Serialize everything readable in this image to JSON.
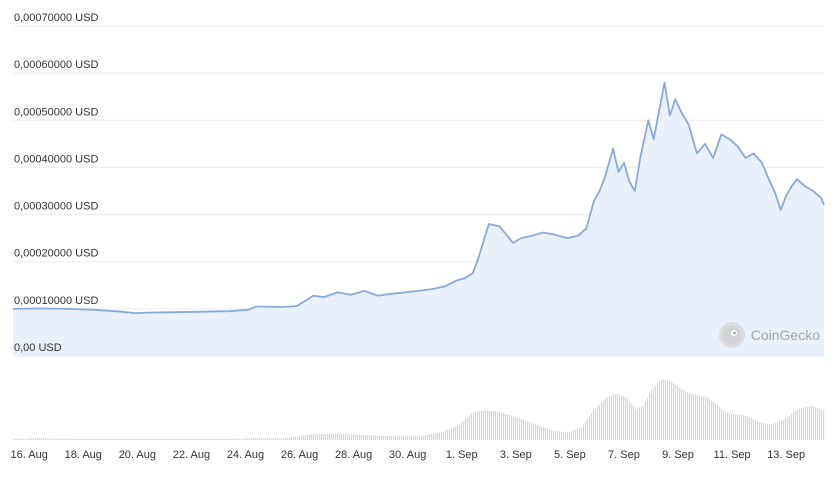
{
  "watermark": {
    "text": "CoinGecko",
    "icon": "gecko-logo-icon"
  },
  "colors": {
    "line": "#8aa9dc",
    "area": "#e9f0fb",
    "volume": "#d6d6d6",
    "grid": "#ececec",
    "text": "#333333"
  },
  "chart_data": [
    {
      "type": "line",
      "title": "",
      "xlabel": "",
      "ylabel": "",
      "ylim": [
        0,
        0.0007
      ],
      "grid": true,
      "fill": "area",
      "y_tick_labels": [
        "0,00 USD",
        "0,00010000 USD",
        "0,00020000 USD",
        "0,00030000 USD",
        "0,00040000 USD",
        "0,00050000 USD",
        "0,00060000 USD",
        "0,00070000 USD"
      ],
      "y_ticks": [
        0,
        0.0001,
        0.0002,
        0.0003,
        0.0004,
        0.0005,
        0.0006,
        0.0007
      ],
      "x_tick_labels": [
        "16. Aug",
        "18. Aug",
        "20. Aug",
        "22. Aug",
        "24. Aug",
        "26. Aug",
        "28. Aug",
        "30. Aug",
        "1. Sep",
        "3. Sep",
        "5. Sep",
        "7. Sep",
        "9. Sep",
        "11. Sep",
        "13. Sep"
      ],
      "x_ticks": [
        15.6,
        17.6,
        19.6,
        21.6,
        23.6,
        25.6,
        27.6,
        29.6,
        31.6,
        33.6,
        35.6,
        37.6,
        39.6,
        41.6,
        43.6
      ],
      "x_unit": "day (day 1 = 1. Aug)",
      "xlim": [
        15.0,
        45.0
      ],
      "x": [
        15.0,
        16.0,
        17.0,
        18.0,
        19.0,
        19.5,
        20.0,
        21.0,
        22.0,
        23.0,
        23.7,
        24.0,
        25.0,
        25.5,
        25.9,
        26.1,
        26.5,
        27.0,
        27.5,
        28.0,
        28.5,
        29.0,
        29.5,
        30.0,
        30.5,
        31.0,
        31.4,
        31.7,
        32.0,
        32.2,
        32.6,
        33.0,
        33.5,
        33.8,
        34.2,
        34.6,
        35.0,
        35.5,
        35.9,
        36.2,
        36.5,
        36.7,
        36.9,
        37.2,
        37.4,
        37.6,
        37.8,
        38.0,
        38.2,
        38.5,
        38.7,
        38.9,
        39.1,
        39.3,
        39.5,
        39.7,
        40.0,
        40.3,
        40.6,
        40.9,
        41.2,
        41.5,
        41.8,
        42.1,
        42.4,
        42.7,
        43.0,
        43.2,
        43.4,
        43.6,
        43.8,
        44.0,
        44.3,
        44.6,
        44.9,
        45.0
      ],
      "values": [
        0.0001,
        0.000101,
        0.0001,
        9.8e-05,
        9.4e-05,
        9.1e-05,
        9.2e-05,
        9.3e-05,
        9.4e-05,
        9.5e-05,
        9.8e-05,
        0.000105,
        0.000104,
        0.000106,
        0.00012,
        0.000128,
        0.000125,
        0.000135,
        0.00013,
        0.000138,
        0.000128,
        0.000132,
        0.000135,
        0.000138,
        0.000142,
        0.000148,
        0.00016,
        0.000165,
        0.000175,
        0.000205,
        0.00028,
        0.000275,
        0.00024,
        0.00025,
        0.000255,
        0.000262,
        0.000258,
        0.00025,
        0.000255,
        0.00027,
        0.00033,
        0.00035,
        0.00038,
        0.00044,
        0.00039,
        0.00041,
        0.00037,
        0.00035,
        0.00042,
        0.0005,
        0.00046,
        0.00052,
        0.00058,
        0.00051,
        0.000545,
        0.00052,
        0.00049,
        0.00043,
        0.00045,
        0.00042,
        0.00047,
        0.00046,
        0.000445,
        0.00042,
        0.00043,
        0.00041,
        0.00037,
        0.000345,
        0.00031,
        0.00034,
        0.00036,
        0.000375,
        0.00036,
        0.00035,
        0.000335,
        0.00032
      ]
    },
    {
      "type": "bar",
      "title": "",
      "ylabel": "",
      "ylim": [
        0,
        1
      ],
      "x_unit": "day (day 1 = 1. Aug)",
      "x": [
        15.0,
        16.0,
        17.0,
        18.0,
        19.0,
        20.0,
        21.0,
        22.0,
        23.0,
        24.0,
        25.0,
        25.6,
        26.0,
        27.0,
        28.0,
        29.0,
        30.0,
        30.5,
        31.0,
        31.5,
        32.0,
        32.5,
        33.0,
        33.5,
        34.0,
        34.5,
        35.0,
        35.5,
        36.0,
        36.5,
        37.0,
        37.3,
        37.7,
        38.0,
        38.3,
        38.6,
        39.0,
        39.3,
        39.6,
        40.0,
        40.3,
        40.6,
        41.0,
        41.3,
        41.6,
        42.0,
        42.3,
        42.6,
        43.0,
        43.5,
        44.0,
        44.5,
        45.0
      ],
      "values": [
        0.02,
        0.03,
        0.02,
        0.02,
        0.02,
        0.02,
        0.02,
        0.02,
        0.02,
        0.03,
        0.03,
        0.06,
        0.09,
        0.1,
        0.08,
        0.06,
        0.06,
        0.1,
        0.15,
        0.25,
        0.45,
        0.48,
        0.45,
        0.38,
        0.3,
        0.22,
        0.15,
        0.12,
        0.2,
        0.5,
        0.7,
        0.75,
        0.68,
        0.5,
        0.55,
        0.8,
        0.98,
        0.95,
        0.85,
        0.75,
        0.72,
        0.7,
        0.58,
        0.45,
        0.42,
        0.4,
        0.35,
        0.28,
        0.25,
        0.32,
        0.5,
        0.55,
        0.48
      ]
    }
  ]
}
